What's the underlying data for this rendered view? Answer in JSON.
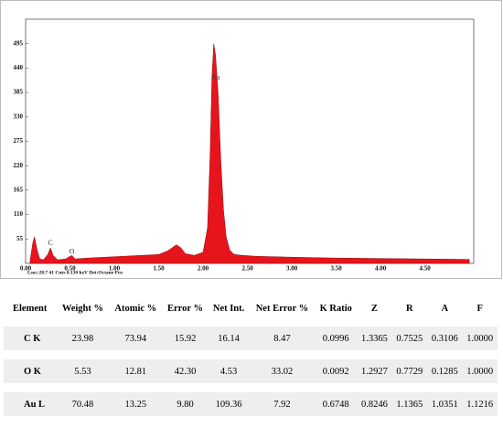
{
  "chart_data": {
    "type": "area",
    "x": [
      0.05,
      0.08,
      0.1,
      0.13,
      0.16,
      0.2,
      0.25,
      0.28,
      0.31,
      0.36,
      0.45,
      0.52,
      0.56,
      0.7,
      0.9,
      1.1,
      1.3,
      1.5,
      1.6,
      1.7,
      1.75,
      1.8,
      1.9,
      2.0,
      2.05,
      2.08,
      2.1,
      2.12,
      2.14,
      2.17,
      2.2,
      2.23,
      2.26,
      2.3,
      2.35,
      2.45,
      2.6,
      2.8,
      3.0,
      3.5,
      4.0,
      4.5,
      5.0
    ],
    "values": [
      5,
      45,
      60,
      30,
      10,
      8,
      20,
      35,
      18,
      8,
      10,
      18,
      10,
      12,
      14,
      16,
      18,
      20,
      28,
      42,
      35,
      22,
      18,
      25,
      80,
      250,
      420,
      495,
      470,
      380,
      230,
      120,
      60,
      30,
      20,
      18,
      16,
      15,
      14,
      12,
      11,
      10,
      9
    ],
    "color": "#e8141c",
    "xlim": [
      0,
      5.05
    ],
    "ylim": [
      0,
      550
    ],
    "xticks": [
      {
        "value": 0,
        "label": "0.00"
      },
      {
        "value": 0.5,
        "label": "0.50"
      },
      {
        "value": 1,
        "label": "1.00"
      },
      {
        "value": 1.5,
        "label": "1.50"
      },
      {
        "value": 2,
        "label": "2.00"
      },
      {
        "value": 2.5,
        "label": "2.50"
      },
      {
        "value": 3,
        "label": "3.00"
      },
      {
        "value": 3.5,
        "label": "3.50"
      },
      {
        "value": 4,
        "label": "4.00"
      },
      {
        "value": 4.5,
        "label": "4.50"
      }
    ],
    "yticks": [
      55,
      110,
      165,
      220,
      275,
      330,
      385,
      440,
      495
    ],
    "annotations": [
      {
        "text": "C",
        "x": 0.28,
        "y": 45
      },
      {
        "text": "O",
        "x": 0.52,
        "y": 25
      },
      {
        "text": "Au",
        "x": 2.14,
        "y": 418
      }
    ],
    "footer": "Lsec:28.7   41 Cnts   0.130 keV   Det:Octane Pro"
  },
  "table": {
    "header": [
      "Element",
      "Weight %",
      "Atomic %",
      "Error %",
      "Net Int.",
      "Net Error %",
      "K Ratio",
      "Z",
      "R",
      "A",
      "F"
    ],
    "rows": [
      [
        "C K",
        "23.98",
        "73.94",
        "15.92",
        "16.14",
        "8.47",
        "0.0996",
        "1.3365",
        "0.7525",
        "0.3106",
        "1.0000"
      ],
      [
        "O K",
        "5.53",
        "12.81",
        "42.30",
        "4.53",
        "33.02",
        "0.0092",
        "1.2927",
        "0.7729",
        "0.1285",
        "1.0000"
      ],
      [
        "Au L",
        "70.48",
        "13.25",
        "9.80",
        "109.36",
        "7.92",
        "0.6748",
        "0.8246",
        "1.1365",
        "1.0351",
        "1.1216"
      ]
    ]
  }
}
